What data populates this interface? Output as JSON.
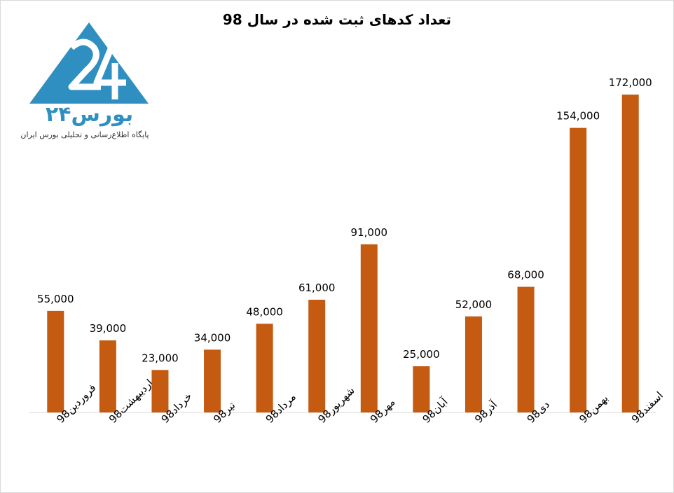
{
  "logo": {
    "name": "بورس۲۴",
    "tagline": "پایگاه اطلاع‌رسانی و تحلیلی بورس ایران"
  },
  "colors": {
    "bar": "#c55a11",
    "logo": "#2f8fc0",
    "axis": "#d9d9d9"
  },
  "chart_data": {
    "type": "bar",
    "title": "تعداد کدهای ثبت شده در سال 98",
    "xlabel": "",
    "ylabel": "",
    "categories": [
      "فروردین98",
      "اردیبهشت98",
      "خرداد98",
      "تیر98",
      "مرداد98",
      "شهریور98",
      "مهر98",
      "آبان98",
      "آذر98",
      "دی98",
      "بهمن98",
      "اسفند98"
    ],
    "values": [
      55000,
      39000,
      23000,
      34000,
      48000,
      61000,
      91000,
      25000,
      52000,
      68000,
      154000,
      172000
    ],
    "value_labels": [
      "55,000",
      "39,000",
      "23,000",
      "34,000",
      "48,000",
      "61,000",
      "91,000",
      "25,000",
      "52,000",
      "68,000",
      "154,000",
      "172,000"
    ],
    "ylim": [
      0,
      180000
    ],
    "grid": false,
    "legend": "none"
  }
}
